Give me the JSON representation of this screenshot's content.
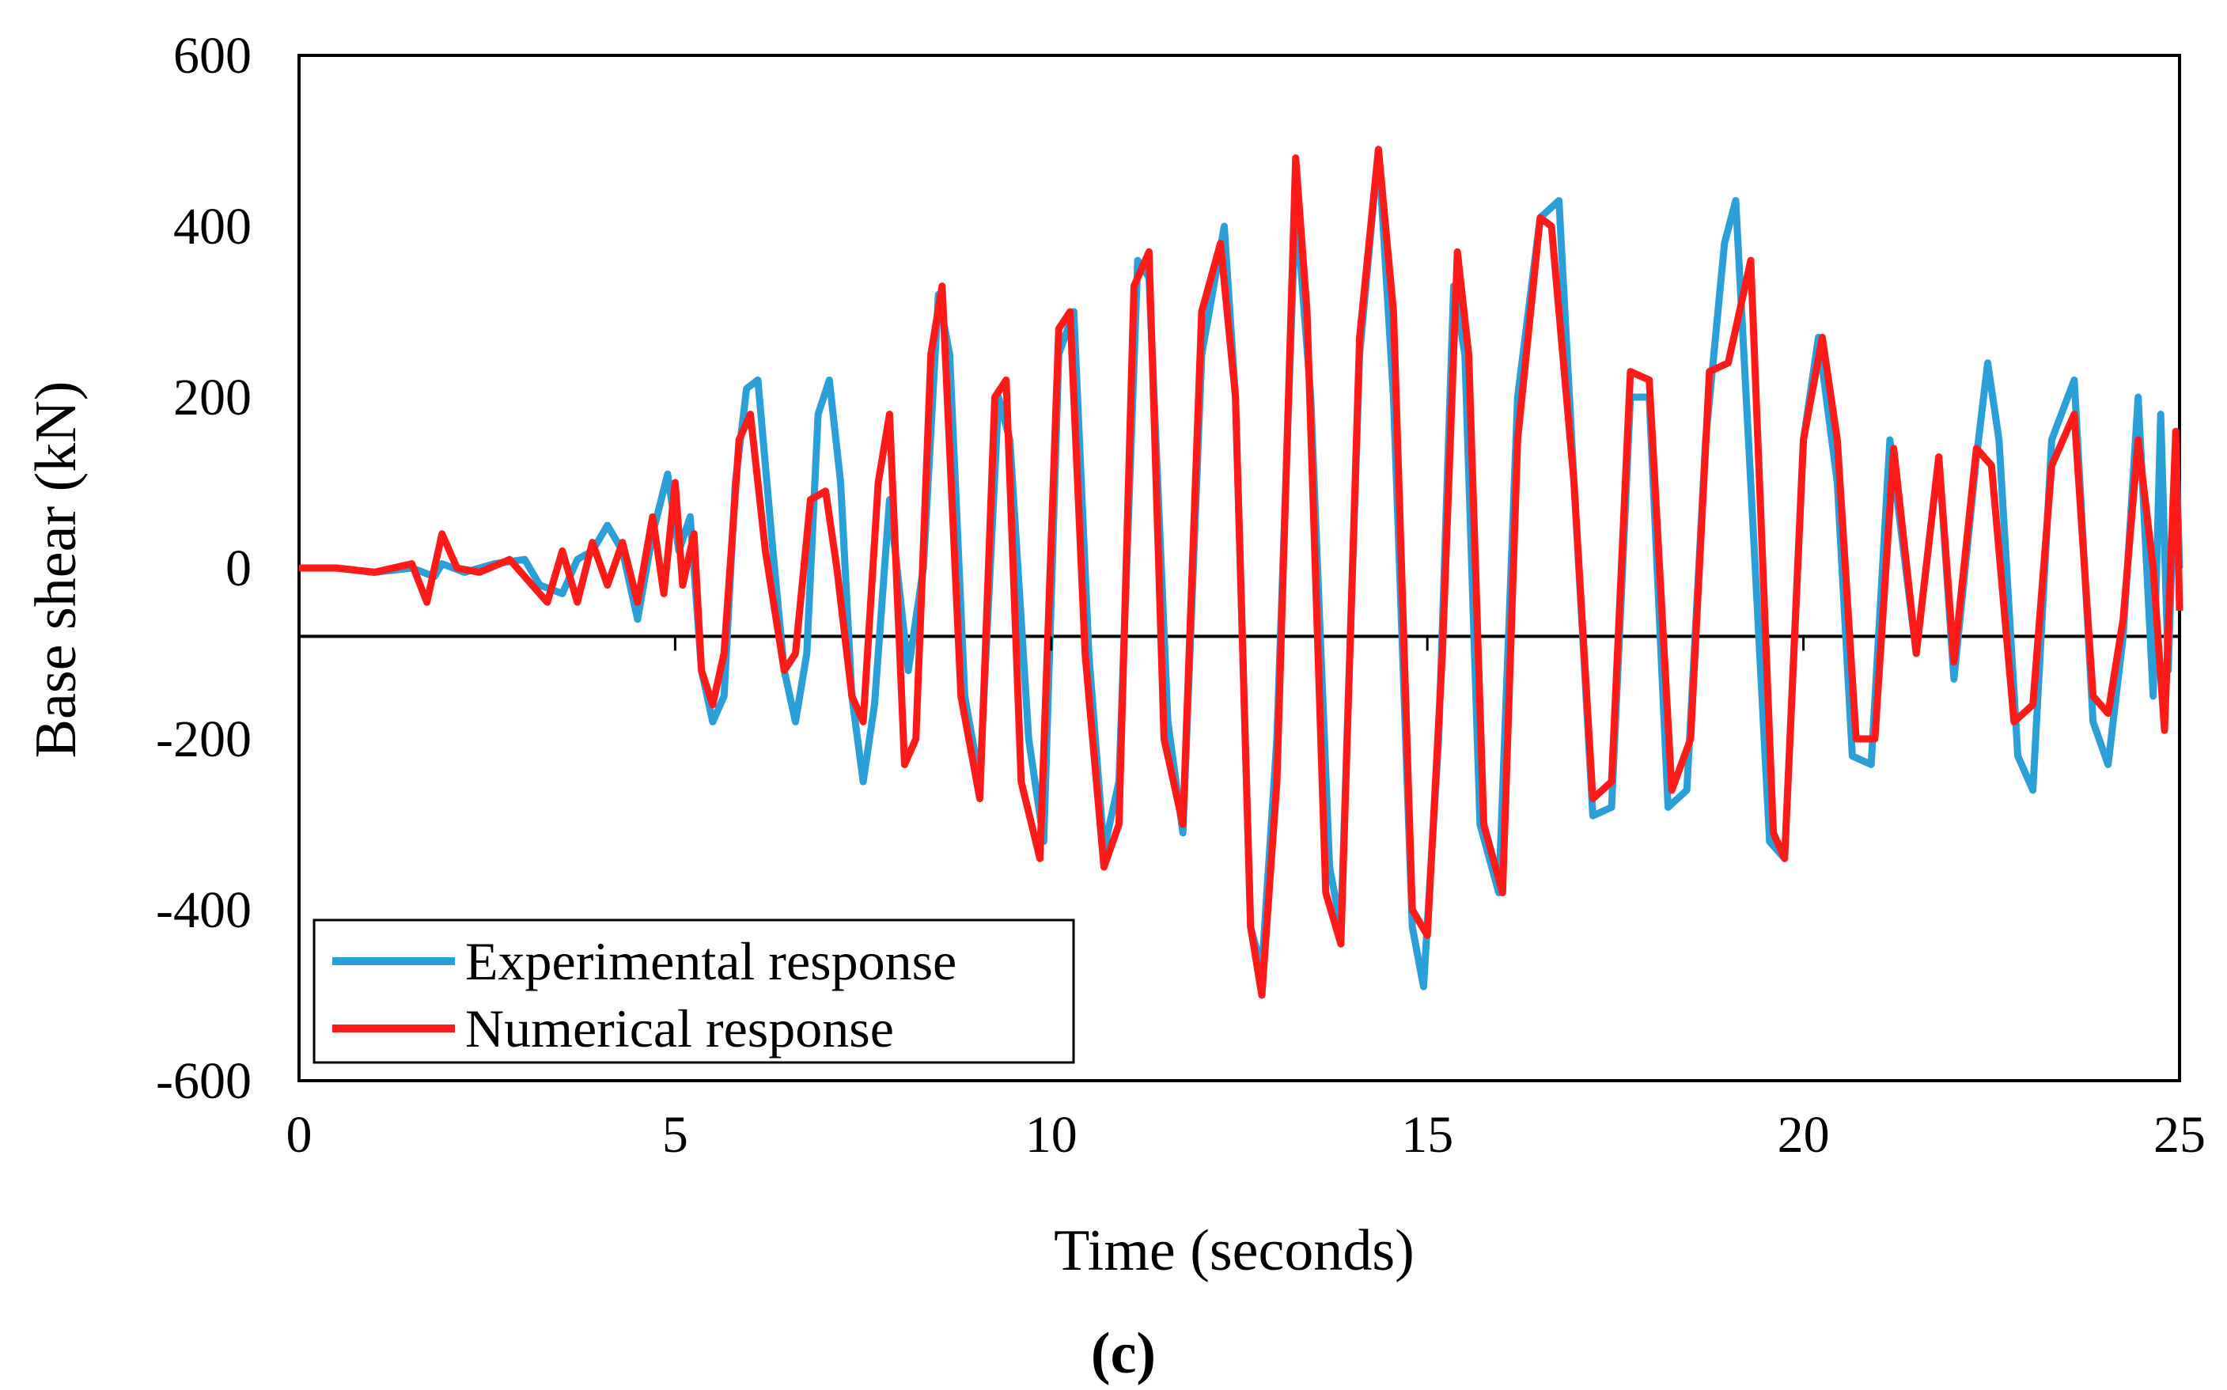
{
  "chart_data": {
    "type": "line",
    "title": "",
    "panel_label": "(c)",
    "xlabel": "Time (seconds)",
    "ylabel": "Base shear (kN)",
    "xlim": [
      0,
      25
    ],
    "ylim": [
      -600,
      600
    ],
    "xticks": [
      0,
      5,
      10,
      15,
      20,
      25
    ],
    "yticks": [
      600,
      400,
      200,
      0,
      -200,
      -400,
      -600
    ],
    "xtick_labels": [
      "0",
      "5",
      "10",
      "15",
      "20",
      "25"
    ],
    "ytick_labels": [
      "600",
      "400",
      "200",
      "0",
      "-200",
      "-400",
      "-600"
    ],
    "reference_line_y": -80,
    "legend": {
      "position": "bottom-left",
      "entries": [
        "Experimental response",
        "Numerical response"
      ]
    },
    "series": [
      {
        "name": "Experimental response",
        "color": "#2a9fd8",
        "points": [
          [
            0,
            0
          ],
          [
            0.5,
            0
          ],
          [
            1,
            -5
          ],
          [
            1.5,
            0
          ],
          [
            1.8,
            -10
          ],
          [
            1.9,
            5
          ],
          [
            2.2,
            -5
          ],
          [
            2.6,
            5
          ],
          [
            3,
            10
          ],
          [
            3.2,
            -20
          ],
          [
            3.5,
            -30
          ],
          [
            3.7,
            10
          ],
          [
            3.9,
            20
          ],
          [
            4.1,
            50
          ],
          [
            4.3,
            20
          ],
          [
            4.5,
            -60
          ],
          [
            4.7,
            40
          ],
          [
            4.9,
            110
          ],
          [
            5.05,
            20
          ],
          [
            5.2,
            60
          ],
          [
            5.35,
            -120
          ],
          [
            5.5,
            -180
          ],
          [
            5.65,
            -150
          ],
          [
            5.8,
            100
          ],
          [
            5.95,
            210
          ],
          [
            6.1,
            220
          ],
          [
            6.3,
            20
          ],
          [
            6.45,
            -120
          ],
          [
            6.6,
            -180
          ],
          [
            6.75,
            -100
          ],
          [
            6.9,
            180
          ],
          [
            7.05,
            220
          ],
          [
            7.2,
            100
          ],
          [
            7.35,
            -150
          ],
          [
            7.5,
            -250
          ],
          [
            7.65,
            -160
          ],
          [
            7.85,
            80
          ],
          [
            8.1,
            -120
          ],
          [
            8.3,
            0
          ],
          [
            8.5,
            320
          ],
          [
            8.65,
            250
          ],
          [
            8.85,
            -150
          ],
          [
            9.05,
            -250
          ],
          [
            9.3,
            200
          ],
          [
            9.45,
            150
          ],
          [
            9.7,
            -200
          ],
          [
            9.9,
            -320
          ],
          [
            10.1,
            250
          ],
          [
            10.3,
            300
          ],
          [
            10.5,
            -100
          ],
          [
            10.7,
            -330
          ],
          [
            10.9,
            -250
          ],
          [
            11.15,
            360
          ],
          [
            11.3,
            340
          ],
          [
            11.55,
            -180
          ],
          [
            11.75,
            -310
          ],
          [
            12.0,
            250
          ],
          [
            12.3,
            400
          ],
          [
            12.45,
            200
          ],
          [
            12.65,
            -420
          ],
          [
            12.8,
            -470
          ],
          [
            13.0,
            -200
          ],
          [
            13.25,
            430
          ],
          [
            13.45,
            200
          ],
          [
            13.7,
            -350
          ],
          [
            13.85,
            -420
          ],
          [
            14.1,
            250
          ],
          [
            14.35,
            490
          ],
          [
            14.55,
            200
          ],
          [
            14.8,
            -420
          ],
          [
            14.95,
            -490
          ],
          [
            15.15,
            -200
          ],
          [
            15.35,
            330
          ],
          [
            15.5,
            250
          ],
          [
            15.7,
            -300
          ],
          [
            15.95,
            -380
          ],
          [
            16.2,
            200
          ],
          [
            16.5,
            410
          ],
          [
            16.75,
            430
          ],
          [
            16.95,
            100
          ],
          [
            17.2,
            -290
          ],
          [
            17.45,
            -280
          ],
          [
            17.7,
            200
          ],
          [
            17.95,
            200
          ],
          [
            18.2,
            -280
          ],
          [
            18.45,
            -260
          ],
          [
            18.7,
            150
          ],
          [
            18.95,
            380
          ],
          [
            19.1,
            430
          ],
          [
            19.3,
            100
          ],
          [
            19.55,
            -320
          ],
          [
            19.75,
            -340
          ],
          [
            20.0,
            150
          ],
          [
            20.2,
            270
          ],
          [
            20.45,
            100
          ],
          [
            20.65,
            -220
          ],
          [
            20.9,
            -230
          ],
          [
            21.15,
            150
          ],
          [
            21.5,
            -100
          ],
          [
            21.8,
            130
          ],
          [
            22.0,
            -130
          ],
          [
            22.3,
            130
          ],
          [
            22.45,
            240
          ],
          [
            22.6,
            150
          ],
          [
            22.85,
            -220
          ],
          [
            23.05,
            -260
          ],
          [
            23.3,
            150
          ],
          [
            23.6,
            220
          ],
          [
            23.85,
            -180
          ],
          [
            24.05,
            -230
          ],
          [
            24.25,
            -80
          ],
          [
            24.45,
            200
          ],
          [
            24.65,
            -150
          ],
          [
            24.75,
            180
          ],
          [
            24.85,
            -120
          ],
          [
            24.95,
            150
          ],
          [
            25,
            0
          ]
        ]
      },
      {
        "name": "Numerical response",
        "color": "#ff1a1a",
        "points": [
          [
            0,
            0
          ],
          [
            0.5,
            0
          ],
          [
            1,
            -5
          ],
          [
            1.5,
            5
          ],
          [
            1.7,
            -40
          ],
          [
            1.9,
            40
          ],
          [
            2.1,
            0
          ],
          [
            2.4,
            -5
          ],
          [
            2.8,
            10
          ],
          [
            3.1,
            -20
          ],
          [
            3.3,
            -40
          ],
          [
            3.5,
            20
          ],
          [
            3.7,
            -40
          ],
          [
            3.9,
            30
          ],
          [
            4.1,
            -20
          ],
          [
            4.3,
            30
          ],
          [
            4.5,
            -40
          ],
          [
            4.7,
            60
          ],
          [
            4.85,
            -30
          ],
          [
            5.0,
            100
          ],
          [
            5.1,
            -20
          ],
          [
            5.25,
            40
          ],
          [
            5.35,
            -120
          ],
          [
            5.5,
            -160
          ],
          [
            5.65,
            -100
          ],
          [
            5.85,
            150
          ],
          [
            6.0,
            180
          ],
          [
            6.2,
            20
          ],
          [
            6.45,
            -120
          ],
          [
            6.6,
            -100
          ],
          [
            6.8,
            80
          ],
          [
            7.0,
            90
          ],
          [
            7.15,
            0
          ],
          [
            7.35,
            -150
          ],
          [
            7.5,
            -180
          ],
          [
            7.7,
            100
          ],
          [
            7.85,
            180
          ],
          [
            8.05,
            -230
          ],
          [
            8.2,
            -200
          ],
          [
            8.4,
            250
          ],
          [
            8.55,
            330
          ],
          [
            8.8,
            -150
          ],
          [
            9.05,
            -270
          ],
          [
            9.25,
            200
          ],
          [
            9.4,
            220
          ],
          [
            9.6,
            -250
          ],
          [
            9.85,
            -340
          ],
          [
            10.1,
            280
          ],
          [
            10.25,
            300
          ],
          [
            10.45,
            -100
          ],
          [
            10.7,
            -350
          ],
          [
            10.9,
            -300
          ],
          [
            11.1,
            330
          ],
          [
            11.3,
            370
          ],
          [
            11.5,
            -200
          ],
          [
            11.75,
            -300
          ],
          [
            12.0,
            300
          ],
          [
            12.25,
            380
          ],
          [
            12.45,
            200
          ],
          [
            12.65,
            -420
          ],
          [
            12.8,
            -500
          ],
          [
            13.0,
            -250
          ],
          [
            13.25,
            480
          ],
          [
            13.4,
            300
          ],
          [
            13.65,
            -380
          ],
          [
            13.85,
            -440
          ],
          [
            14.1,
            270
          ],
          [
            14.35,
            490
          ],
          [
            14.55,
            300
          ],
          [
            14.8,
            -400
          ],
          [
            15.0,
            -430
          ],
          [
            15.2,
            -100
          ],
          [
            15.4,
            370
          ],
          [
            15.55,
            250
          ],
          [
            15.75,
            -300
          ],
          [
            16.0,
            -380
          ],
          [
            16.2,
            150
          ],
          [
            16.5,
            410
          ],
          [
            16.65,
            400
          ],
          [
            16.95,
            100
          ],
          [
            17.2,
            -270
          ],
          [
            17.45,
            -250
          ],
          [
            17.7,
            230
          ],
          [
            17.95,
            220
          ],
          [
            18.25,
            -260
          ],
          [
            18.5,
            -200
          ],
          [
            18.75,
            230
          ],
          [
            19.0,
            240
          ],
          [
            19.3,
            360
          ],
          [
            19.6,
            -310
          ],
          [
            19.75,
            -340
          ],
          [
            20.0,
            150
          ],
          [
            20.25,
            270
          ],
          [
            20.45,
            150
          ],
          [
            20.7,
            -200
          ],
          [
            20.95,
            -200
          ],
          [
            21.2,
            140
          ],
          [
            21.5,
            -100
          ],
          [
            21.8,
            130
          ],
          [
            22.0,
            -110
          ],
          [
            22.3,
            140
          ],
          [
            22.5,
            120
          ],
          [
            22.8,
            -180
          ],
          [
            23.05,
            -160
          ],
          [
            23.3,
            120
          ],
          [
            23.6,
            180
          ],
          [
            23.85,
            -150
          ],
          [
            24.05,
            -170
          ],
          [
            24.25,
            -60
          ],
          [
            24.45,
            150
          ],
          [
            24.65,
            0
          ],
          [
            24.8,
            -190
          ],
          [
            24.95,
            160
          ],
          [
            25,
            -50
          ]
        ]
      }
    ]
  }
}
